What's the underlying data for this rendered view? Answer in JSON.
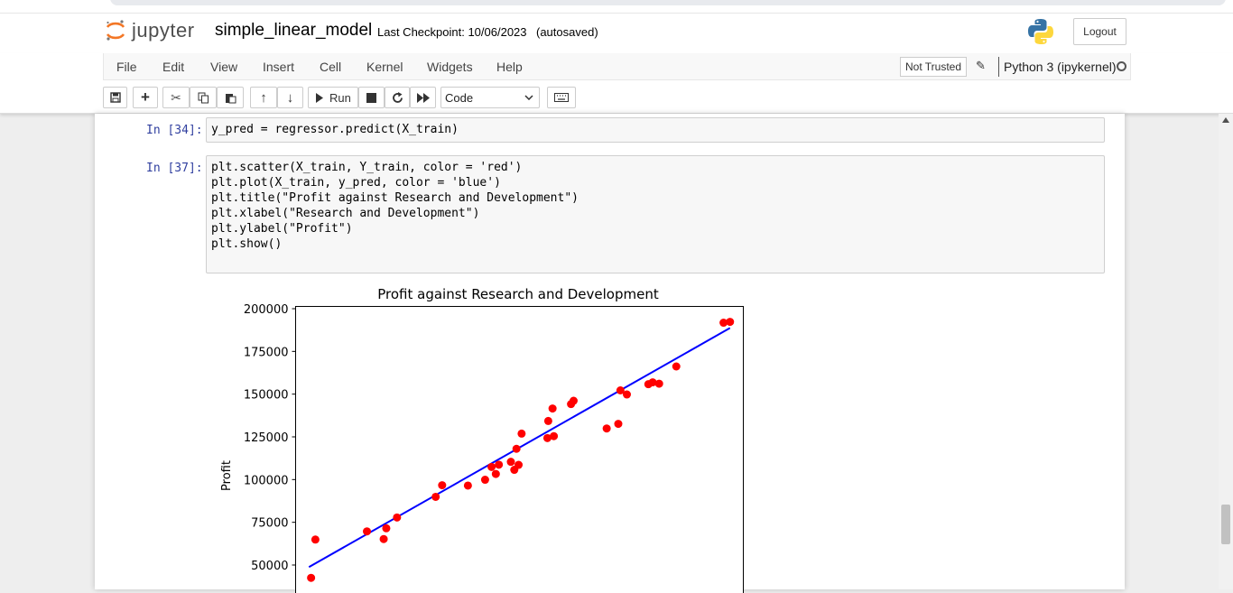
{
  "app": {
    "logo_text": "jupyter",
    "notebook_name": "simple_linear_model",
    "checkpoint": "Last Checkpoint: 10/06/2023",
    "autosave": "(autosaved)",
    "logout_label": "Logout"
  },
  "menu": {
    "items": [
      "File",
      "Edit",
      "View",
      "Insert",
      "Cell",
      "Kernel",
      "Widgets",
      "Help"
    ],
    "trust": "Not Trusted",
    "kernel": "Python 3 (ipykernel)"
  },
  "toolbar": {
    "run_label": "Run",
    "cell_type": "Code",
    "icons": [
      "save-icon",
      "plus-icon",
      "cut-icon",
      "copy-icon",
      "paste-icon",
      "arrow-up-icon",
      "arrow-down-icon",
      "run-icon",
      "stop-icon",
      "restart-icon",
      "fast-forward-icon",
      "keyboard-icon"
    ]
  },
  "cells": [
    {
      "prompt": "In [34]:",
      "lines": [
        "y_pred = regressor.predict(X_train)"
      ]
    },
    {
      "prompt": "In [37]:",
      "lines": [
        "plt.scatter(X_train, Y_train, color = 'red')",
        "plt.plot(X_train, y_pred, color = 'blue')",
        "plt.title(\"Profit against Research and Development\")",
        "plt.xlabel(\"Research and Development\")",
        "plt.ylabel(\"Profit\")",
        "plt.show()"
      ]
    }
  ],
  "chart_data": {
    "type": "scatter",
    "title": "Profit against Research and Development",
    "xlabel": "",
    "ylabel": "Profit",
    "ylim": [
      30000,
      205000
    ],
    "yticks": [
      50000,
      75000,
      100000,
      125000,
      150000,
      175000,
      200000
    ],
    "ytick_labels": [
      "50000",
      "75000",
      "100000",
      "125000",
      "150000",
      "175000",
      "200000"
    ],
    "scatter_color": "#ff0000",
    "line_color": "#0000ff",
    "points": [
      {
        "x": 1.5,
        "y": 42500
      },
      {
        "x": 2.5,
        "y": 64900
      },
      {
        "x": 14.5,
        "y": 69700
      },
      {
        "x": 18.4,
        "y": 65200
      },
      {
        "x": 19.0,
        "y": 71500
      },
      {
        "x": 21.5,
        "y": 77800
      },
      {
        "x": 30.5,
        "y": 89900
      },
      {
        "x": 32.0,
        "y": 96700
      },
      {
        "x": 38.0,
        "y": 96500
      },
      {
        "x": 42.0,
        "y": 99900
      },
      {
        "x": 43.5,
        "y": 107400
      },
      {
        "x": 44.5,
        "y": 103300
      },
      {
        "x": 45.2,
        "y": 108700
      },
      {
        "x": 48.0,
        "y": 110400
      },
      {
        "x": 48.8,
        "y": 105700
      },
      {
        "x": 49.3,
        "y": 118000
      },
      {
        "x": 49.8,
        "y": 108600
      },
      {
        "x": 50.5,
        "y": 126900
      },
      {
        "x": 56.5,
        "y": 124300
      },
      {
        "x": 56.7,
        "y": 134300
      },
      {
        "x": 57.7,
        "y": 141600
      },
      {
        "x": 58.0,
        "y": 125400
      },
      {
        "x": 62.0,
        "y": 144200
      },
      {
        "x": 62.6,
        "y": 146100
      },
      {
        "x": 70.3,
        "y": 129900
      },
      {
        "x": 73.0,
        "y": 132600
      },
      {
        "x": 73.5,
        "y": 152200
      },
      {
        "x": 75.0,
        "y": 149800
      },
      {
        "x": 80.0,
        "y": 155800
      },
      {
        "x": 81.0,
        "y": 156900
      },
      {
        "x": 82.5,
        "y": 156100
      },
      {
        "x": 86.5,
        "y": 166200
      },
      {
        "x": 97.5,
        "y": 191800
      },
      {
        "x": 99.0,
        "y": 192300
      }
    ],
    "fit_line": {
      "x": [
        1.0,
        99.0
      ],
      "y": [
        48800,
        188700
      ]
    }
  }
}
